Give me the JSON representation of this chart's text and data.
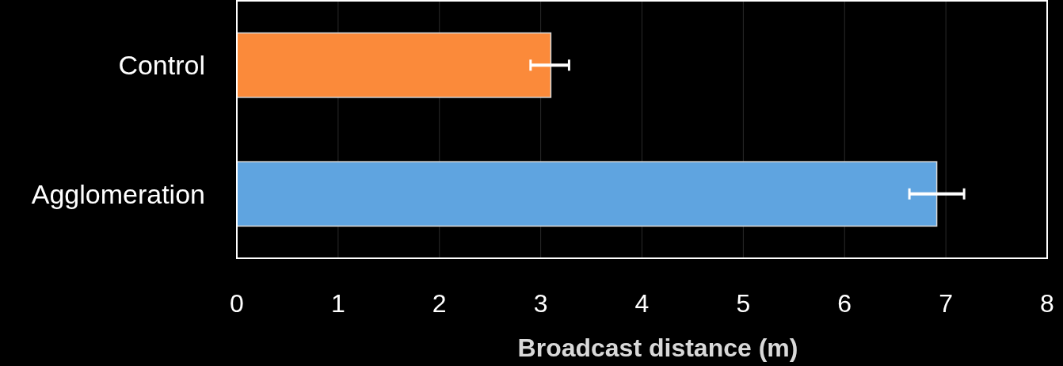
{
  "chart_data": {
    "type": "bar",
    "orientation": "horizontal",
    "categories": [
      "Control",
      "Agglomeration"
    ],
    "values": [
      3.1,
      6.91
    ],
    "colors": [
      "#fb8a3a",
      "#5fa4e0"
    ],
    "errors": [
      [
        2.9,
        3.28
      ],
      [
        6.64,
        7.18
      ]
    ],
    "xlim": [
      0,
      8
    ],
    "xticks": [
      0,
      1,
      2,
      3,
      4,
      5,
      6,
      7,
      8
    ],
    "xlabel": "Broadcast distance (m)",
    "grid": "x"
  }
}
